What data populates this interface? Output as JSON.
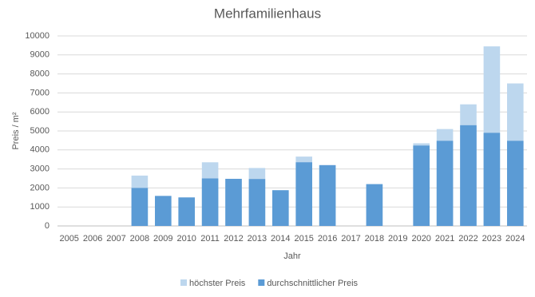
{
  "chart_data": {
    "type": "bar",
    "title": "Mehrfamilienhaus",
    "x_label": "Jahr",
    "y_label": "Preis / m²",
    "categories": [
      "2005",
      "2006",
      "2007",
      "2008",
      "2009",
      "2010",
      "2011",
      "2012",
      "2013",
      "2014",
      "2015",
      "2016",
      "2017",
      "2018",
      "2019",
      "2020",
      "2021",
      "2022",
      "2023",
      "2024"
    ],
    "series": [
      {
        "name": "höchster Preis",
        "color": "#bdd7ee",
        "values": [
          null,
          null,
          null,
          2650,
          1580,
          1500,
          3350,
          2480,
          3050,
          1880,
          3650,
          3200,
          null,
          2200,
          null,
          4350,
          5100,
          6400,
          9450,
          7500
        ]
      },
      {
        "name": "durchschnittlicher Preis",
        "color": "#5b9bd5",
        "values": [
          null,
          null,
          null,
          2000,
          1580,
          1500,
          2500,
          2480,
          2470,
          1880,
          3350,
          3200,
          null,
          2200,
          null,
          4230,
          4480,
          5300,
          4900,
          4480
        ]
      }
    ],
    "ylim": [
      0,
      10000
    ],
    "yticks": [
      0,
      1000,
      2000,
      3000,
      4000,
      5000,
      6000,
      7000,
      8000,
      9000,
      10000
    ],
    "grid": true,
    "legend": "bottom"
  }
}
